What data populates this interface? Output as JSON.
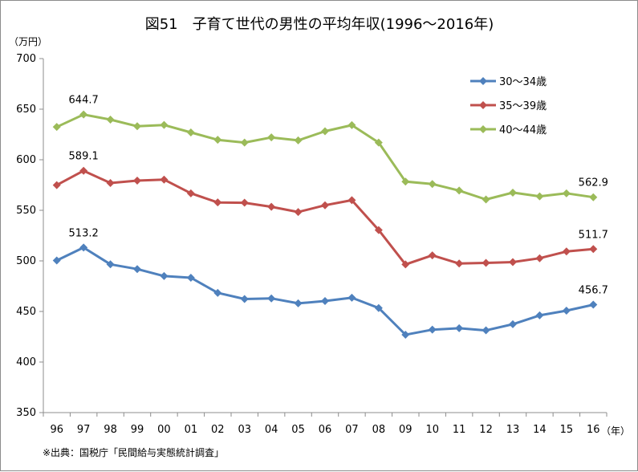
{
  "chart_data": {
    "type": "line",
    "title": "図51　子育て世代の男性の平均年収(1996～2016年)",
    "ylabel": "（万円）",
    "xlabel": "（年）",
    "ylim": [
      350,
      700
    ],
    "yticks": [
      350,
      400,
      450,
      500,
      550,
      600,
      650,
      700
    ],
    "categories": [
      "96",
      "97",
      "98",
      "99",
      "00",
      "01",
      "02",
      "03",
      "04",
      "05",
      "06",
      "07",
      "08",
      "09",
      "10",
      "11",
      "12",
      "13",
      "14",
      "15",
      "16"
    ],
    "legend_position": "top-right",
    "grid": false,
    "series": [
      {
        "name": "30～34歳",
        "color": "#4f81bd",
        "values": [
          500.4,
          513.2,
          496.6,
          491.9,
          485.0,
          483.3,
          468.4,
          462.3,
          462.9,
          458.0,
          460.3,
          463.6,
          453.4,
          427.0,
          432.0,
          433.4,
          431.3,
          437.4,
          446.1,
          450.8,
          456.7
        ]
      },
      {
        "name": "35～39歳",
        "color": "#c0504d",
        "values": [
          574.9,
          589.1,
          577.0,
          579.4,
          580.4,
          566.8,
          557.8,
          557.5,
          553.5,
          548.3,
          555.0,
          560.0,
          530.5,
          496.5,
          505.5,
          497.4,
          498.0,
          498.8,
          502.6,
          509.3,
          511.7
        ]
      },
      {
        "name": "40～44歳",
        "color": "#9bbb59",
        "values": [
          632.4,
          644.7,
          639.7,
          633.1,
          634.4,
          627.0,
          619.7,
          617.0,
          622.1,
          619.1,
          628.2,
          634.2,
          617.0,
          578.4,
          576.0,
          569.5,
          560.7,
          567.5,
          563.8,
          566.8,
          562.9
        ]
      }
    ],
    "data_labels": [
      {
        "series": 0,
        "index": 1,
        "text": "513.2"
      },
      {
        "series": 0,
        "index": 20,
        "text": "456.7"
      },
      {
        "series": 1,
        "index": 1,
        "text": "589.1"
      },
      {
        "series": 1,
        "index": 20,
        "text": "511.7"
      },
      {
        "series": 2,
        "index": 1,
        "text": "644.7"
      },
      {
        "series": 2,
        "index": 20,
        "text": "562.9"
      }
    ]
  },
  "footer": {
    "source": "※出典：国税庁「民間給与実態統計調査」"
  }
}
